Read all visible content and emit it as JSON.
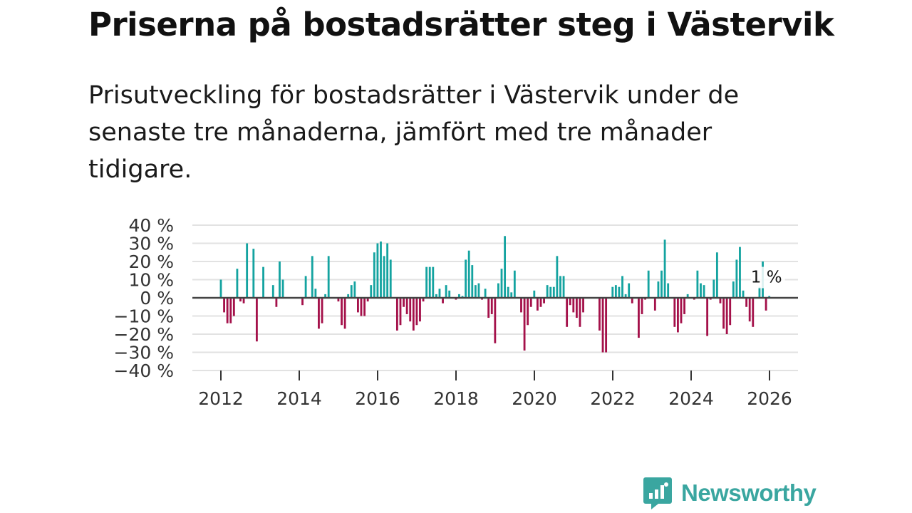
{
  "title": "Priserna på bostadsrätter steg i Västervik",
  "subtitle": "Prisutveckling för bostadsrätter i Västervik under de senaste tre månaderna, jämfört med tre månader tidigare.",
  "brand": {
    "name": "Newsworthy"
  },
  "colors": {
    "positive": "#14a3a0",
    "negative": "#a4114a",
    "zero_line": "#444444",
    "grid": "#e2e2e2",
    "axis_text": "#333333"
  },
  "chart_data": {
    "type": "bar",
    "title": "Priserna på bostadsrätter steg i Västervik",
    "xlabel": "",
    "ylabel": "",
    "ylim": [
      -40,
      40
    ],
    "y_ticks": [
      "40 %",
      "30 %",
      "20 %",
      "10 %",
      "0 %",
      "−10 %",
      "−20 %",
      "−30 %",
      "−40 %"
    ],
    "y_tick_values": [
      40,
      30,
      20,
      10,
      0,
      -10,
      -20,
      -30,
      -40
    ],
    "x_ticks": [
      "2012",
      "2014",
      "2016",
      "2018",
      "2020",
      "2022",
      "2024",
      "2026"
    ],
    "x_tick_values": [
      2012,
      2014,
      2016,
      2018,
      2020,
      2022,
      2024,
      2026
    ],
    "x_start": 2012.0,
    "x_step": 0.0833,
    "last_value_label": "1 %",
    "values": [
      10,
      -8,
      -14,
      -14,
      -10,
      16,
      -2,
      -3,
      30,
      0,
      27,
      -24,
      0,
      17,
      0,
      0,
      7,
      -5,
      20,
      10,
      0,
      0,
      0,
      0,
      0,
      -4,
      12,
      0,
      23,
      5,
      -17,
      -14,
      2,
      23,
      0,
      0,
      -2,
      -15,
      -17,
      2,
      7,
      9,
      -8,
      -10,
      -10,
      -2,
      7,
      25,
      30,
      31,
      23,
      30,
      21,
      0,
      -18,
      -15,
      -5,
      -9,
      -13,
      -18,
      -15,
      -13,
      -2,
      17,
      17,
      17,
      2,
      5,
      -3,
      7,
      4,
      0,
      -1,
      2,
      1,
      21,
      26,
      18,
      7,
      8,
      -1,
      5,
      -11,
      -9,
      -25,
      8,
      16,
      34,
      6,
      3,
      15,
      0,
      -8,
      -29,
      -15,
      -5,
      4,
      -7,
      -5,
      -3,
      7,
      6,
      6,
      23,
      12,
      12,
      -16,
      -4,
      -8,
      -11,
      -16,
      -8,
      0,
      0,
      0,
      0,
      -18,
      -30,
      -30,
      0,
      6,
      7,
      6,
      12,
      2,
      8,
      -3,
      0,
      -22,
      -9,
      -1,
      15,
      0,
      -7,
      9,
      15,
      32,
      8,
      0,
      -16,
      -19,
      -14,
      -9,
      2,
      0,
      -1,
      15,
      8,
      7,
      -21,
      -1,
      10,
      25,
      -3,
      -17,
      -20,
      -15,
      9,
      21,
      28,
      4,
      -5,
      -13,
      -16,
      0,
      6,
      20,
      -7,
      1
    ]
  }
}
